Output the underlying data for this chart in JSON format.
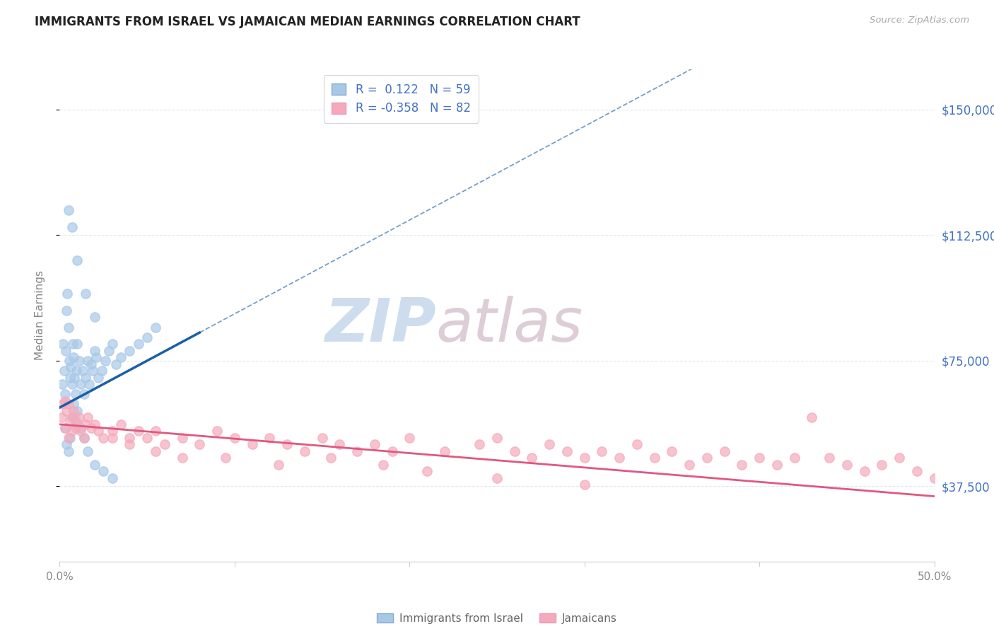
{
  "title": "IMMIGRANTS FROM ISRAEL VS JAMAICAN MEDIAN EARNINGS CORRELATION CHART",
  "source": "Source: ZipAtlas.com",
  "ylabel": "Median Earnings",
  "y_ticks": [
    37500,
    75000,
    112500,
    150000
  ],
  "y_tick_labels": [
    "$37,500",
    "$75,000",
    "$112,500",
    "$150,000"
  ],
  "x_min": 0.0,
  "x_max": 50.0,
  "y_min": 15000,
  "y_max": 162000,
  "legend_r1": "R =  0.122",
  "legend_n1": "N = 59",
  "legend_r2": "R = -0.358",
  "legend_n2": "N = 82",
  "legend_label1": "Immigrants from Israel",
  "legend_label2": "Jamaicans",
  "blue_scatter_color": "#a8c8e8",
  "blue_line_color": "#1a5fa8",
  "pink_scatter_color": "#f4aabb",
  "pink_line_color": "#e05880",
  "israel_x": [
    0.15,
    0.2,
    0.25,
    0.3,
    0.35,
    0.4,
    0.45,
    0.5,
    0.55,
    0.6,
    0.65,
    0.7,
    0.75,
    0.8,
    0.85,
    0.9,
    0.95,
    1.0,
    1.1,
    1.2,
    1.3,
    1.4,
    1.5,
    1.6,
    1.7,
    1.8,
    1.9,
    2.0,
    2.1,
    2.2,
    2.4,
    2.6,
    2.8,
    3.0,
    3.2,
    3.5,
    4.0,
    4.5,
    5.0,
    5.5,
    0.3,
    0.4,
    0.5,
    0.6,
    0.7,
    0.8,
    0.9,
    1.0,
    1.2,
    1.4,
    1.6,
    2.0,
    2.5,
    3.0,
    0.5,
    0.7,
    1.0,
    1.5,
    2.0
  ],
  "israel_y": [
    68000,
    80000,
    72000,
    65000,
    78000,
    90000,
    95000,
    85000,
    75000,
    70000,
    73000,
    68000,
    80000,
    76000,
    70000,
    65000,
    72000,
    80000,
    75000,
    68000,
    72000,
    65000,
    70000,
    75000,
    68000,
    74000,
    72000,
    78000,
    76000,
    70000,
    72000,
    75000,
    78000,
    80000,
    74000,
    76000,
    78000,
    80000,
    82000,
    85000,
    55000,
    50000,
    48000,
    52000,
    58000,
    62000,
    57000,
    60000,
    55000,
    52000,
    48000,
    44000,
    42000,
    40000,
    120000,
    115000,
    105000,
    95000,
    88000
  ],
  "jamaican_x": [
    0.1,
    0.2,
    0.3,
    0.4,
    0.5,
    0.6,
    0.7,
    0.8,
    0.9,
    1.0,
    1.2,
    1.4,
    1.6,
    1.8,
    2.0,
    2.5,
    3.0,
    3.5,
    4.0,
    4.5,
    5.0,
    5.5,
    6.0,
    7.0,
    8.0,
    9.0,
    10.0,
    11.0,
    12.0,
    13.0,
    14.0,
    15.0,
    16.0,
    17.0,
    18.0,
    19.0,
    20.0,
    22.0,
    24.0,
    25.0,
    26.0,
    27.0,
    28.0,
    29.0,
    30.0,
    31.0,
    32.0,
    33.0,
    34.0,
    35.0,
    36.0,
    37.0,
    38.0,
    39.0,
    40.0,
    41.0,
    42.0,
    43.0,
    44.0,
    45.0,
    46.0,
    47.0,
    48.0,
    49.0,
    50.0,
    0.3,
    0.5,
    0.8,
    1.1,
    1.5,
    2.2,
    3.0,
    4.0,
    5.5,
    7.0,
    9.5,
    12.5,
    15.5,
    18.5,
    21.0,
    25.0,
    30.0
  ],
  "jamaican_y": [
    58000,
    62000,
    55000,
    60000,
    52000,
    57000,
    54000,
    58000,
    55000,
    56000,
    54000,
    52000,
    58000,
    55000,
    56000,
    52000,
    54000,
    56000,
    52000,
    54000,
    52000,
    54000,
    50000,
    52000,
    50000,
    54000,
    52000,
    50000,
    52000,
    50000,
    48000,
    52000,
    50000,
    48000,
    50000,
    48000,
    52000,
    48000,
    50000,
    52000,
    48000,
    46000,
    50000,
    48000,
    46000,
    48000,
    46000,
    50000,
    46000,
    48000,
    44000,
    46000,
    48000,
    44000,
    46000,
    44000,
    46000,
    58000,
    46000,
    44000,
    42000,
    44000,
    46000,
    42000,
    40000,
    63000,
    62000,
    60000,
    58000,
    56000,
    54000,
    52000,
    50000,
    48000,
    46000,
    46000,
    44000,
    46000,
    44000,
    42000,
    40000,
    38000
  ],
  "blue_trend_x0": 0.0,
  "blue_trend_y0": 61000,
  "blue_trend_slope": 2800,
  "blue_solid_end_x": 8.0,
  "pink_trend_x0": 0.0,
  "pink_trend_y0": 56000,
  "pink_trend_slope": -430,
  "watermark_zip_color": "#c5d8eb",
  "watermark_atlas_color": "#d8c5cf",
  "title_color": "#222222",
  "source_color": "#aaaaaa",
  "ylabel_color": "#888888",
  "tick_color": "#888888",
  "grid_color": "#dde8f0",
  "right_label_color": "#4472c4",
  "legend_text_color": "#4472c4",
  "bottom_legend_color": "#666666"
}
